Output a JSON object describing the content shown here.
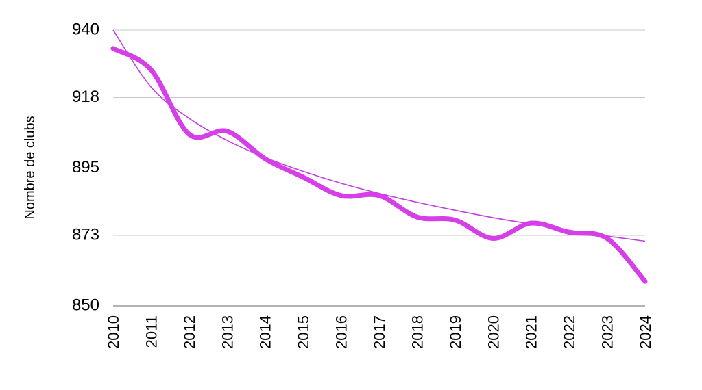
{
  "chart_data": {
    "type": "line",
    "title": "",
    "xlabel": "",
    "ylabel": "Nombre de clubs",
    "x": [
      "2010",
      "2011",
      "2012",
      "2013",
      "2014",
      "2015",
      "2016",
      "2017",
      "2018",
      "2019",
      "2020",
      "2021",
      "2022",
      "2023",
      "2024"
    ],
    "series": [
      {
        "name": "",
        "color": "#d63fe8",
        "values": [
          934,
          927,
          906,
          907,
          898,
          892,
          886,
          886,
          879,
          878,
          872,
          877,
          874,
          872,
          858
        ]
      }
    ],
    "trendline": {
      "type": "logarithmic",
      "color": "#c040e0",
      "values": [
        940,
        921.4,
        911.2,
        904.0,
        898.4,
        893.9,
        890.0,
        886.7,
        883.8,
        881.2,
        878.8,
        876.7,
        874.7,
        872.8,
        871.1
      ]
    },
    "yticks": [
      850,
      873,
      895,
      918,
      940
    ],
    "ylim": [
      850,
      940
    ],
    "grid": true,
    "legend": "none"
  }
}
